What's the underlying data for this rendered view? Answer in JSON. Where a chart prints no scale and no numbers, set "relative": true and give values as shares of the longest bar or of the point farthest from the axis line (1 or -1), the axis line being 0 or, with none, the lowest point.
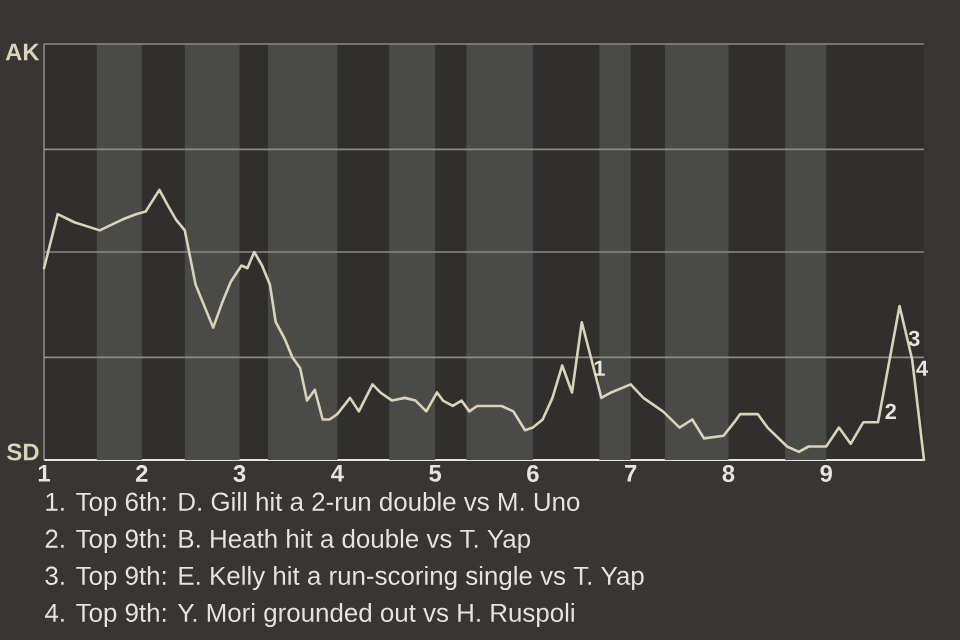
{
  "chart_data": {
    "type": "line",
    "relative": true,
    "xlim": [
      1,
      10
    ],
    "xticks": [
      1,
      2,
      3,
      4,
      5,
      6,
      7,
      8,
      9
    ],
    "marker": "none",
    "ref_lines": [
      {
        "axis": "y",
        "value": 0.38,
        "color": "#8c8b88"
      },
      {
        "axis": "y",
        "value": 0.77,
        "color": "#8c8b88"
      },
      {
        "axis": "y",
        "value": 1.15,
        "color": "#8c8b88"
      },
      {
        "axis": "y",
        "value": 1.54,
        "color": "#8c8b88"
      }
    ],
    "bands": [
      {
        "axis": "x",
        "from": 1.54,
        "to": 2,
        "color": "#4a4a49"
      },
      {
        "axis": "x",
        "from": 2.44,
        "to": 3,
        "color": "#4a4a49"
      },
      {
        "axis": "x",
        "from": 3.29,
        "to": 4,
        "color": "#4a4a49"
      },
      {
        "axis": "x",
        "from": 4.53,
        "to": 5,
        "color": "#4a4a49"
      },
      {
        "axis": "x",
        "from": 5.32,
        "to": 6,
        "color": "#4a4a49"
      },
      {
        "axis": "x",
        "from": 6.68,
        "to": 7,
        "color": "#4a4a49"
      },
      {
        "axis": "x",
        "from": 7.35,
        "to": 8,
        "color": "#4a4a49"
      },
      {
        "axis": "x",
        "from": 8.58,
        "to": 9,
        "color": "#4a4a49"
      }
    ],
    "x": [
      1,
      1.14,
      1.31,
      1.57,
      1.8,
      1.94,
      2.04,
      2.18,
      2.27,
      2.35,
      2.44,
      2.55,
      2.73,
      2.82,
      2.91,
      3.02,
      3.08,
      3.15,
      3.23,
      3.31,
      3.37,
      3.46,
      3.54,
      3.62,
      3.69,
      3.77,
      3.85,
      3.92,
      4,
      4.13,
      4.22,
      4.36,
      4.44,
      4.56,
      4.69,
      4.8,
      4.91,
      5.02,
      5.08,
      5.18,
      5.27,
      5.35,
      5.43,
      5.55,
      5.68,
      5.8,
      5.92,
      6,
      6.1,
      6.2,
      6.3,
      6.4,
      6.5,
      6.6,
      6.7,
      6.8,
      7,
      7.13,
      7.33,
      7.5,
      7.63,
      7.75,
      7.95,
      8.06,
      8.12,
      8.3,
      8.4,
      8.6,
      8.72,
      8.82,
      9,
      9.13,
      9.25,
      9.38,
      9.53,
      9.75,
      9.88,
      10
    ],
    "series": [
      {
        "color": "#d9d3b8",
        "values": [
          0.71,
          0.91,
          0.88,
          0.85,
          0.89,
          0.91,
          0.92,
          1,
          0.94,
          0.89,
          0.85,
          0.65,
          0.49,
          0.58,
          0.66,
          0.72,
          0.71,
          0.77,
          0.72,
          0.65,
          0.51,
          0.45,
          0.38,
          0.34,
          0.22,
          0.26,
          0.15,
          0.15,
          0.17,
          0.23,
          0.18,
          0.28,
          0.25,
          0.22,
          0.23,
          0.22,
          0.18,
          0.25,
          0.22,
          0.2,
          0.22,
          0.18,
          0.2,
          0.2,
          0.2,
          0.18,
          0.11,
          0.12,
          0.15,
          0.23,
          0.35,
          0.25,
          0.51,
          0.37,
          0.23,
          0.25,
          0.28,
          0.23,
          0.18,
          0.12,
          0.15,
          0.08,
          0.09,
          0.14,
          0.17,
          0.17,
          0.12,
          0.05,
          0.03,
          0.05,
          0.05,
          0.12,
          0.06,
          0.14,
          0.14,
          0.57,
          0.37,
          0
        ]
      }
    ],
    "annotations": [
      {
        "text": "1",
        "x": 6.68,
        "y": 0.34
      },
      {
        "text": "2",
        "x": 9.66,
        "y": 0.18
      },
      {
        "text": "3",
        "x": 9.9,
        "y": 0.45
      },
      {
        "text": "4",
        "x": 9.98,
        "y": 0.34
      },
      "AK",
      "SD",
      "1. Top 6th: D. Gill hit a 2-run double vs M. Uno",
      "2. Top 9th: B. Heath hit a double vs T. Yap",
      "3. Top 9th: E. Kelly hit a run-scoring single vs T. Yap",
      "4. Top 9th: Y. Mori grounded out vs H. Ruspoli"
    ]
  }
}
